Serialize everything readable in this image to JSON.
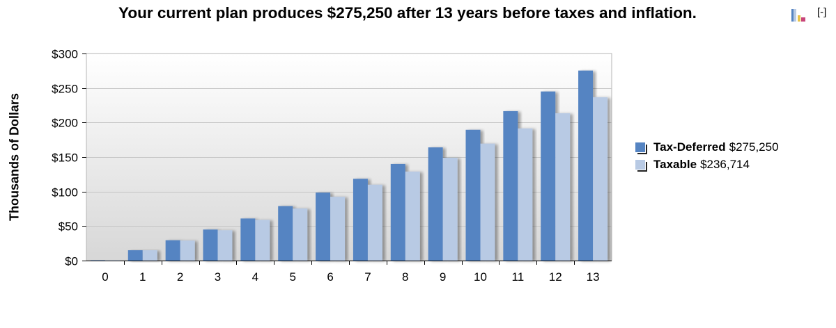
{
  "header": {
    "title": "Your current plan produces $275,250 after 13 years before taxes and inflation.",
    "chart_icon": "bar-chart-icon",
    "collapse_label": "[-]"
  },
  "chart_data": {
    "type": "bar",
    "title": "Your current plan produces $275,250 after 13 years before taxes and inflation.",
    "xlabel": "",
    "ylabel": "Thousands of Dollars",
    "categories": [
      "0",
      "1",
      "2",
      "3",
      "4",
      "5",
      "6",
      "7",
      "8",
      "9",
      "10",
      "11",
      "12",
      "13"
    ],
    "y_ticks": [
      "$0",
      "$50",
      "$100",
      "$150",
      "$200",
      "$250",
      "$300"
    ],
    "y_tick_values": [
      0,
      50,
      100,
      150,
      200,
      250,
      300
    ],
    "ylim": [
      0,
      300
    ],
    "grid": true,
    "legend_position": "right",
    "series": [
      {
        "name": "Tax-Deferred",
        "total": "$275,250",
        "color": "#5584c2",
        "values": [
          0.5,
          15,
          29.5,
          45,
          61,
          79,
          98.5,
          118.5,
          140,
          164,
          189.5,
          216.5,
          245,
          275.25
        ]
      },
      {
        "name": "Taxable",
        "total": "$236,714",
        "color": "#b8cae4",
        "values": [
          0.5,
          15,
          29,
          44,
          59,
          75.5,
          92.5,
          110,
          129,
          149,
          169.5,
          191.5,
          213.5,
          236.714
        ]
      }
    ]
  }
}
